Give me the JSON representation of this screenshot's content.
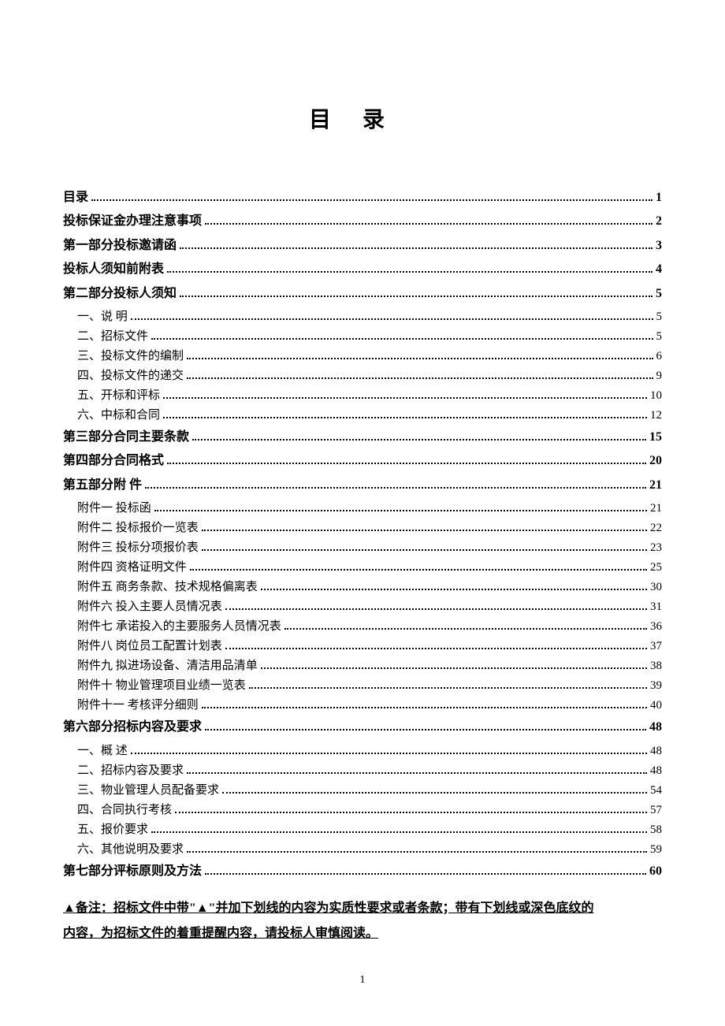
{
  "title": "目录",
  "toc": [
    {
      "label": "目",
      "gap": "    录",
      "page": "1",
      "bold": true,
      "level": 1
    },
    {
      "label": "投标保证金办理注意事项",
      "page": "2",
      "bold": true,
      "level": 1
    },
    {
      "label": "第一部分",
      "gap": "  投标邀请函",
      "page": "3",
      "bold": true,
      "level": 1
    },
    {
      "label": "投标人须知前附表",
      "page": "4",
      "bold": true,
      "level": 1
    },
    {
      "label": "第二部分",
      "gap": "    投标人须知",
      "page": "5",
      "bold": true,
      "level": 1
    },
    {
      "label": "一、",
      "gap": " 说    明",
      "page": "5",
      "level": 2
    },
    {
      "label": "二、",
      "gap": " 招标文件",
      "page": "5",
      "level": 2
    },
    {
      "label": "三、",
      "gap": " 投标文件的编制",
      "page": "6",
      "level": 2
    },
    {
      "label": "四、",
      "gap": " 投标文件的递交",
      "page": "9",
      "level": 2
    },
    {
      "label": "五、",
      "gap": " 开标和评标",
      "page": "10",
      "level": 2
    },
    {
      "label": "六、",
      "gap": " 中标和合同",
      "page": "12",
      "level": 2
    },
    {
      "label": "第三部分",
      "gap": "    合同主要条款",
      "page": "15",
      "bold": true,
      "level": 1
    },
    {
      "label": "第四部分",
      "gap": "    合同格式",
      "page": "20",
      "bold": true,
      "level": 1
    },
    {
      "label": "第五部分",
      "gap": "    附    件",
      "page": "21",
      "bold": true,
      "level": 1
    },
    {
      "label": "附件一 投标函",
      "page": "21",
      "level": 3
    },
    {
      "label": "附件二 投标报价一览表",
      "page": "22",
      "level": 3
    },
    {
      "label": "附件三 投标分项报价表",
      "page": "23",
      "level": 3
    },
    {
      "label": "附件四 资格证明文件",
      "page": "25",
      "level": 3
    },
    {
      "label": "附件五 商务条款、技术规格偏离表",
      "page": "30",
      "level": 3
    },
    {
      "label": "附件六 投入主要人员情况表",
      "page": "31",
      "level": 3
    },
    {
      "label": "附件七 承诺投入的主要服务人员情况表",
      "page": "36",
      "level": 3
    },
    {
      "label": "附件八 岗位员工配置计划表",
      "page": "37",
      "level": 3
    },
    {
      "label": "附件九 拟进场设备、清洁用品清单",
      "page": "38",
      "level": 3
    },
    {
      "label": "附件十 物业管理项目业绩一览表",
      "page": "39",
      "level": 3
    },
    {
      "label": "附件十一 考核评分细则",
      "page": "40",
      "level": 3
    },
    {
      "label": "第六部分",
      "gap": "    招标内容及要求",
      "page": "48",
      "bold": true,
      "level": 1
    },
    {
      "label": "一、概 述",
      "page": "48",
      "level": 3
    },
    {
      "label": "二、招标内容及要求",
      "page": "48",
      "level": 3
    },
    {
      "label": "三、物业管理人员配备要求",
      "page": "54",
      "level": 3
    },
    {
      "label": "四、合同执行考核",
      "page": "57",
      "level": 3
    },
    {
      "label": "五、报价要求",
      "page": "58",
      "level": 3
    },
    {
      "label": "六、其他说明及要求",
      "page": "59",
      "level": 3
    },
    {
      "label": "第七部分",
      "gap": "    评标原则及方法",
      "page": "60",
      "bold": true,
      "level": 1
    }
  ],
  "note_line1": "▲备注：招标文件中带\"▲\"并加下划线的内容为实质性要求或者条款；带有下划线或深色底纹的",
  "note_line2": "内容，为招标文件的着重提醒内容，请投标人审慎阅读。",
  "page_number": "1"
}
